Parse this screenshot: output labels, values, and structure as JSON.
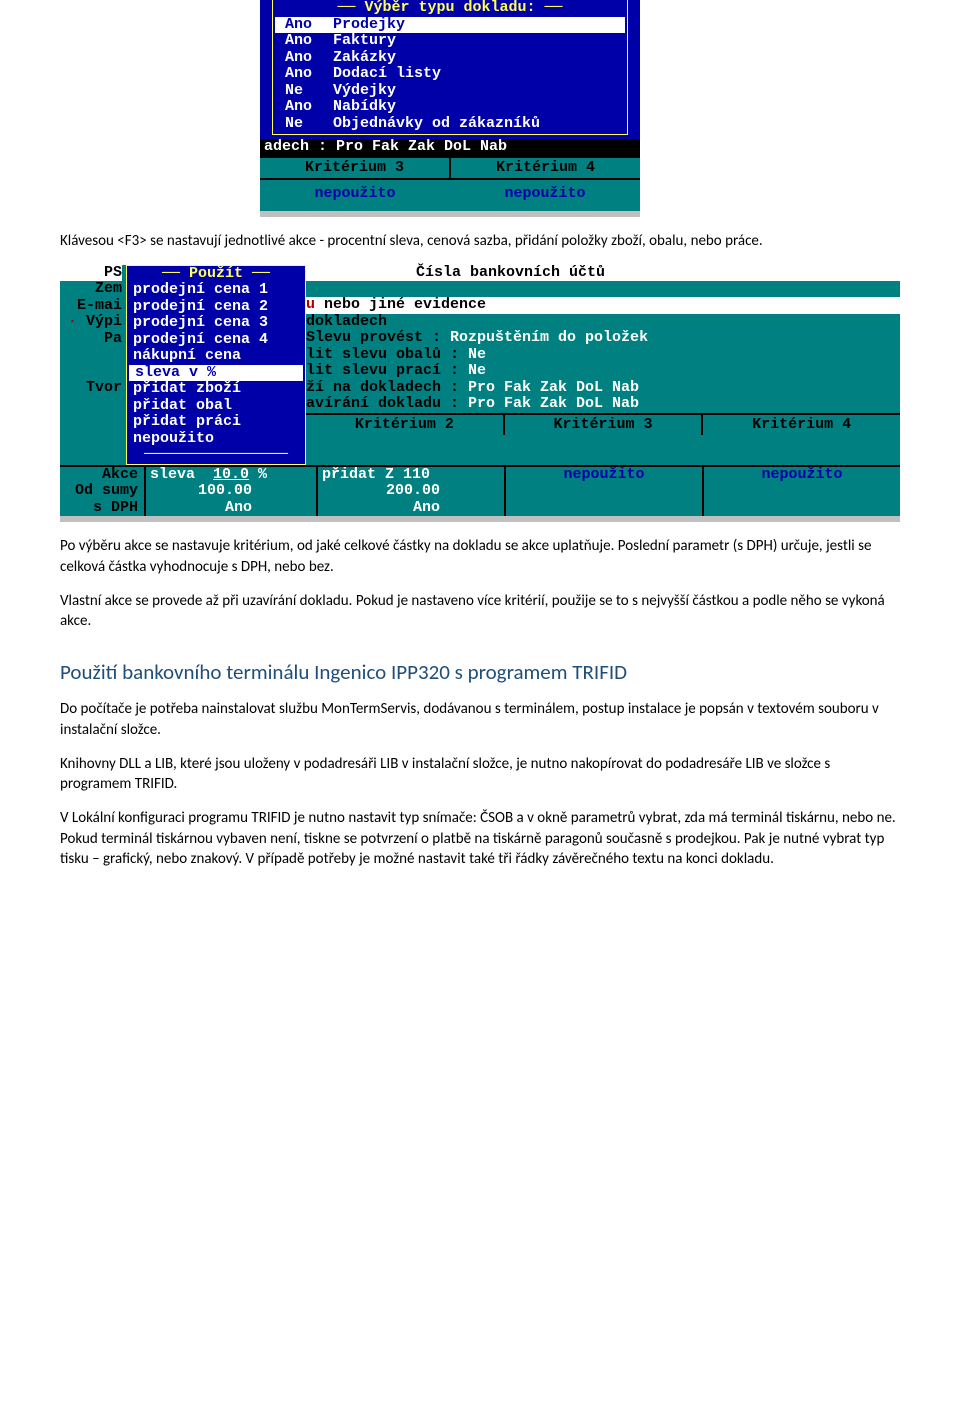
{
  "shot1": {
    "popup_title": "Výběr typu dokladu:",
    "rows": [
      {
        "flag": "Ano",
        "label": "Prodejky",
        "selected": true
      },
      {
        "flag": "Ano",
        "label": "Faktury",
        "selected": false
      },
      {
        "flag": "Ano",
        "label": "Zakázky",
        "selected": false
      },
      {
        "flag": "Ano",
        "label": "Dodací listy",
        "selected": false
      },
      {
        "flag": "Ne",
        "label": "Výdejky",
        "selected": false
      },
      {
        "flag": "Ano",
        "label": "Nabídky",
        "selected": false
      },
      {
        "flag": "Ne",
        "label": "Objednávky od zákazníků",
        "selected": false
      }
    ],
    "black_line": "adech : Pro Fak Zak DoL Nab",
    "krit3": "Kritérium 3",
    "krit4": "Kritérium 4",
    "np3": "nepoužito",
    "np4": "nepoužito"
  },
  "para1": "Klávesou <F3> se nastavují jednotlivé akce - procentní sleva, cenová sazba, přidání položky zboží, obalu, nebo práce.",
  "shot2": {
    "left_labels": [
      "PS",
      "Zem",
      "E-mai",
      "Výpi",
      "Pa",
      "",
      "",
      "Tvor",
      "",
      "",
      ""
    ],
    "left_red_idx": 3,
    "popup_title": "Použít",
    "popup_items": [
      "prodejní cena 1",
      "prodejní cena 2",
      "prodejní cena 3",
      "prodejní cena 4",
      "nákupní cena",
      "sleva v %",
      "přidat zboží",
      "přidat obal",
      "přidat práci",
      "nepoužito"
    ],
    "popup_selected_idx": 5,
    "header_title": "Čísla bankovních účtů",
    "mid_line_red": "u",
    "mid_line_black": " nebo jiné evidence",
    "mid_lines": [
      " dokladech",
      " Slevu provést :",
      "lit slevu obalů :",
      "lit slevu prací :",
      "ží na dokladech :",
      "avírání dokladu :"
    ],
    "mid_values": [
      "",
      "Rozpuštěním do položek",
      "Ne",
      "Ne",
      "Pro Fak Zak DoL Nab",
      "Pro Fak Zak DoL Nab"
    ],
    "krit2": "Kritérium 2",
    "krit3": "Kritérium 3",
    "krit4": "Kritérium 4",
    "bottom_l1": "Akce",
    "bottom_l2": "Od sumy",
    "bottom_l3": "s DPH",
    "c1_val1": "sleva  10.0 %",
    "c1_val2": "100.00",
    "c1_val3": "Ano",
    "c2_val1": "přidat Z  110",
    "c2_val2": "200.00",
    "c2_val3": "Ano",
    "c3_val": "nepoužito",
    "c4_val": "nepoužito"
  },
  "para2": "Po výběru akce se nastavuje kritérium, od jaké celkové částky na dokladu se akce uplatňuje. Poslední parametr (s DPH) určuje, jestli se celková částka vyhodnocuje s DPH, nebo bez.",
  "para3": "Vlastní akce se provede až při uzavírání dokladu. Pokud je nastaveno více kritérií, použije se to s nejvyšší částkou a podle něho se vykoná akce.",
  "section_title": "Použití bankovního terminálu Ingenico IPP320 s programem TRIFID",
  "para4": "Do počítače je potřeba nainstalovat službu MonTermServis, dodávanou s terminálem, postup instalace je popsán v textovém souboru v instalační složce.",
  "para5": "Knihovny DLL a LIB, které jsou uloženy v podadresáři LIB v instalační složce, je nutno nakopírovat do podadresáře LIB ve složce s programem TRIFID.",
  "para6": "V Lokální konfiguraci programu TRIFID je nutno nastavit typ snímače: ČSOB a v okně parametrů vybrat, zda má terminál tiskárnu, nebo ne. Pokud terminál tiskárnou vybaven není, tiskne se potvrzení o platbě na tiskárně paragonů současně s prodejkou. Pak je nutné vybrat typ tisku – grafický, nebo znakový. V případě potřeby je možné nastavit také tři řádky závěrečného textu na konci dokladu.",
  "colors": {
    "teal": "#008080",
    "blue": "#0000a8",
    "yellow": "#ffff55",
    "white": "#ffffff",
    "gray": "#c0c0c0",
    "black": "#000000",
    "red": "#aa0000",
    "heading": "#1f4e79"
  }
}
